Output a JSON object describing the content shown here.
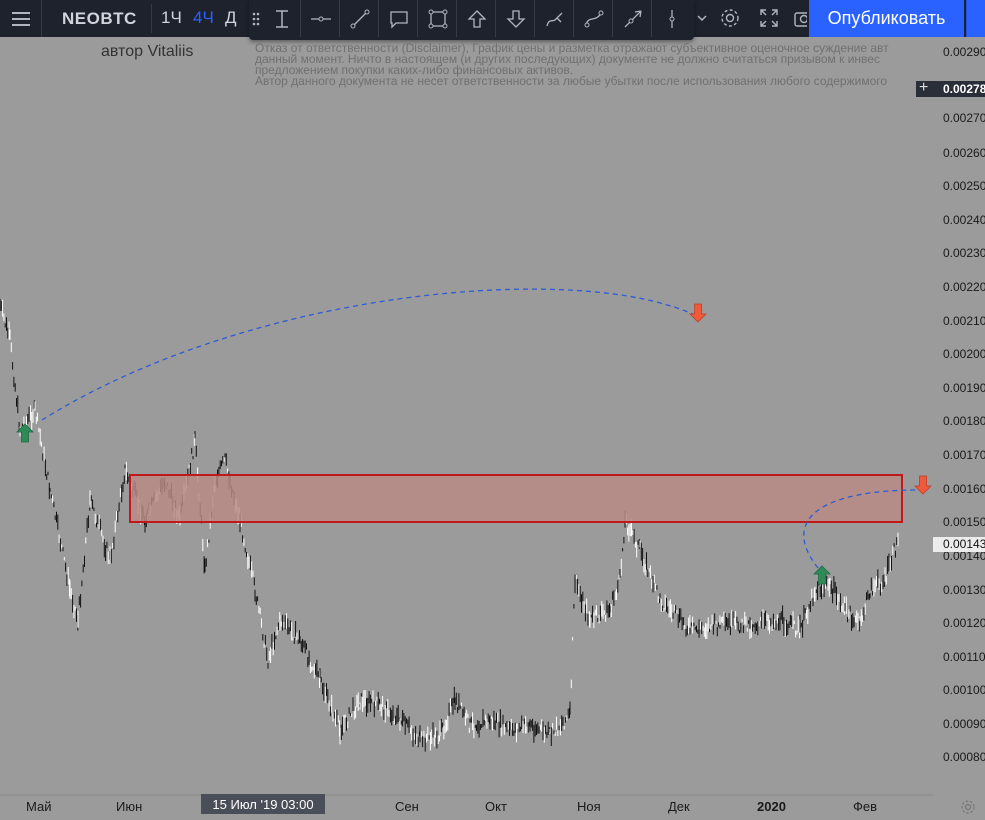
{
  "header": {
    "symbol": "NEOBTC",
    "timeframes": [
      "1Ч",
      "4Ч",
      "Д"
    ],
    "active_timeframe": "4Ч",
    "publish_label": "Опубликовать"
  },
  "drawing_toolbar": {
    "tools": [
      "text-cursor-icon",
      "horizontal-line-icon",
      "trend-line-icon",
      "comment-icon",
      "rectangle-icon",
      "arrow-up-icon",
      "arrow-down-icon",
      "brush-icon",
      "path-icon",
      "ray-icon",
      "vertical-line-icon"
    ],
    "extra": [
      "chevron-down-icon",
      "gear-icon",
      "fullscreen-icon",
      "camera-icon"
    ]
  },
  "author": "автор Vitaliis",
  "disclaimer": [
    "Отказ от ответственности (Disclaimer), График цены и разметка отражают субъективное оценочное суждение авт",
    "данный момент. Ничто в настоящем (и других последующих) документе не должно считаться призывом к инвес",
    "предложением покупки каких-либо финансовых активов.",
    "Автор данного документа не несет ответственности за любые убытки после использования любого содержимого"
  ],
  "y_axis": {
    "labels": [
      "0.00290",
      "0.00270",
      "0.00260",
      "0.00250",
      "0.00240",
      "0.00230",
      "0.00220",
      "0.00210",
      "0.00200",
      "0.00190",
      "0.00180",
      "0.00170",
      "0.00160",
      "0.00150",
      "0.00140",
      "0.00130",
      "0.00120",
      "0.00110",
      "0.00100",
      "0.00090",
      "0.00080"
    ],
    "current_price": "0.00143",
    "cursor_price": "0.00278"
  },
  "x_axis": {
    "labels": [
      "Май",
      "Июн",
      "Сен",
      "Окт",
      "Ноя",
      "Дек",
      "2020",
      "Фев"
    ],
    "bold_label": "2020",
    "crosshair_label": "15 Июл '19   03:00"
  },
  "colors": {
    "background": "#9b9b9b",
    "toolbar": "#1e222d",
    "accent": "#2962ff",
    "zone_fill": "#b88a85",
    "zone_border": "#c0181b",
    "arrow_up": "#2e8b57",
    "arrow_down": "#f05a3a",
    "projection": "#2e5bd6"
  }
}
